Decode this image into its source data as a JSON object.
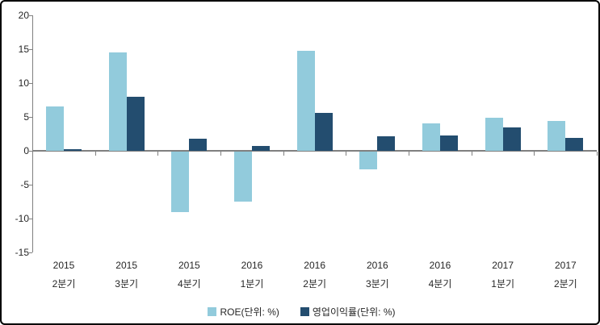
{
  "chart_data": {
    "type": "bar",
    "title": "",
    "xlabel": "",
    "ylabel": "",
    "ylim": [
      -15,
      20
    ],
    "yticks": [
      20,
      15,
      10,
      5,
      0,
      -5,
      -10,
      -15
    ],
    "grid": false,
    "legend_position": "bottom",
    "categories": [
      {
        "line1": "2015",
        "line2": "2분기"
      },
      {
        "line1": "2015",
        "line2": "3분기"
      },
      {
        "line1": "2015",
        "line2": "4분기"
      },
      {
        "line1": "2016",
        "line2": "1분기"
      },
      {
        "line1": "2016",
        "line2": "2분기"
      },
      {
        "line1": "2016",
        "line2": "3분기"
      },
      {
        "line1": "2016",
        "line2": "4분기"
      },
      {
        "line1": "2017",
        "line2": "1분기"
      },
      {
        "line1": "2017",
        "line2": "2분기"
      }
    ],
    "series": [
      {
        "name": "ROE(단위: %)",
        "color": "#92CBDC",
        "values": [
          6.5,
          14.5,
          -8.9,
          -7.4,
          14.8,
          -2.6,
          4.0,
          4.9,
          4.4
        ]
      },
      {
        "name": "영업이익률(단위: %)",
        "color": "#234D6F",
        "values": [
          0.2,
          8.0,
          1.8,
          0.7,
          5.6,
          2.1,
          2.3,
          3.5,
          1.9
        ]
      }
    ],
    "axis_color": "#808080",
    "text_color": "#262626"
  }
}
